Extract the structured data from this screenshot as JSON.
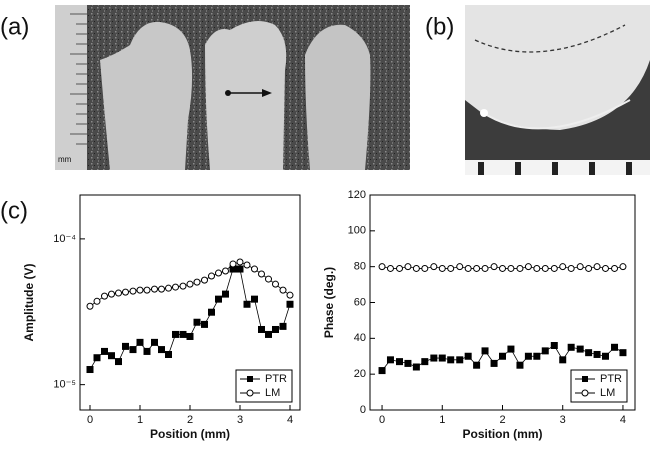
{
  "panels": [
    "(a)",
    "(b)",
    "(c)"
  ],
  "scale_label": "mm",
  "chart_data": [
    {
      "type": "line",
      "xlabel": "Position (mm)",
      "ylabel": "Amplitude (V)",
      "ylog": true,
      "x": [
        0,
        0.14,
        0.29,
        0.43,
        0.57,
        0.71,
        0.86,
        1,
        1.14,
        1.29,
        1.43,
        1.57,
        1.71,
        1.86,
        2,
        2.14,
        2.29,
        2.43,
        2.57,
        2.71,
        2.86,
        3,
        3.14,
        3.29,
        3.43,
        3.57,
        3.71,
        3.86,
        4
      ],
      "series": [
        {
          "name": "PTR",
          "color": "#000000",
          "marker": "square",
          "values": [
            1.27e-05,
            1.53e-05,
            1.69e-05,
            1.58e-05,
            1.44e-05,
            1.83e-05,
            1.74e-05,
            1.95e-05,
            1.69e-05,
            1.95e-05,
            1.74e-05,
            1.61e-05,
            2.21e-05,
            2.21e-05,
            2.14e-05,
            2.68e-05,
            2.59e-05,
            3.14e-05,
            3.86e-05,
            4.18e-05,
            6.21e-05,
            6.21e-05,
            3.56e-05,
            3.86e-05,
            2.39e-05,
            2.21e-05,
            2.39e-05,
            2.51e-05,
            3.56e-05
          ]
        },
        {
          "name": "LM",
          "color": "#000000",
          "marker": "circle",
          "values": [
            3.45e-05,
            3.73e-05,
            4.05e-05,
            4.18e-05,
            4.25e-05,
            4.31e-05,
            4.38e-05,
            4.45e-05,
            4.45e-05,
            4.52e-05,
            4.52e-05,
            4.59e-05,
            4.67e-05,
            4.74e-05,
            4.89e-05,
            5.05e-05,
            5.21e-05,
            5.56e-05,
            5.83e-05,
            6.02e-05,
            6.73e-05,
            6.94e-05,
            6.62e-05,
            6.21e-05,
            5.74e-05,
            5.3e-05,
            4.89e-05,
            4.45e-05,
            4.11e-05
          ]
        }
      ],
      "xlim": [
        -0.2,
        4.2
      ],
      "xticks": [
        0,
        1,
        2,
        3,
        4
      ],
      "ylim": [
        6.7e-06,
        0.0002
      ],
      "yticks": [
        {
          "value": 0.0001,
          "label": "10⁻⁴"
        },
        {
          "value": 1e-05,
          "label": "10⁻⁵"
        }
      ],
      "legend": "lower right"
    },
    {
      "type": "line",
      "xlabel": "Position (mm)",
      "ylabel": "Phase (deg.)",
      "ylog": false,
      "x": [
        0,
        0.14,
        0.29,
        0.43,
        0.57,
        0.71,
        0.86,
        1,
        1.14,
        1.29,
        1.43,
        1.57,
        1.71,
        1.86,
        2,
        2.14,
        2.29,
        2.43,
        2.57,
        2.71,
        2.86,
        3,
        3.14,
        3.29,
        3.43,
        3.57,
        3.71,
        3.86,
        4
      ],
      "series": [
        {
          "name": "PTR",
          "color": "#000000",
          "marker": "square",
          "values": [
            22,
            28,
            27,
            26,
            24,
            27,
            29,
            29,
            28,
            28,
            30,
            25,
            33,
            26,
            30,
            34,
            25,
            30,
            30,
            33,
            36,
            28,
            35,
            34,
            32,
            31,
            30,
            35,
            32
          ]
        },
        {
          "name": "LM",
          "color": "#000000",
          "marker": "circle",
          "values": [
            80,
            79,
            79,
            80,
            79,
            79,
            80,
            79,
            79,
            80,
            79,
            79,
            79,
            80,
            79,
            79,
            79,
            80,
            79,
            79,
            79,
            80,
            79,
            80,
            79,
            80,
            79,
            79,
            80
          ]
        }
      ],
      "xlim": [
        -0.2,
        4.2
      ],
      "xticks": [
        0,
        1,
        2,
        3,
        4
      ],
      "ylim": [
        0,
        120
      ],
      "yticks": [
        0,
        20,
        40,
        60,
        80,
        100,
        120
      ],
      "legend": "lower right"
    }
  ]
}
